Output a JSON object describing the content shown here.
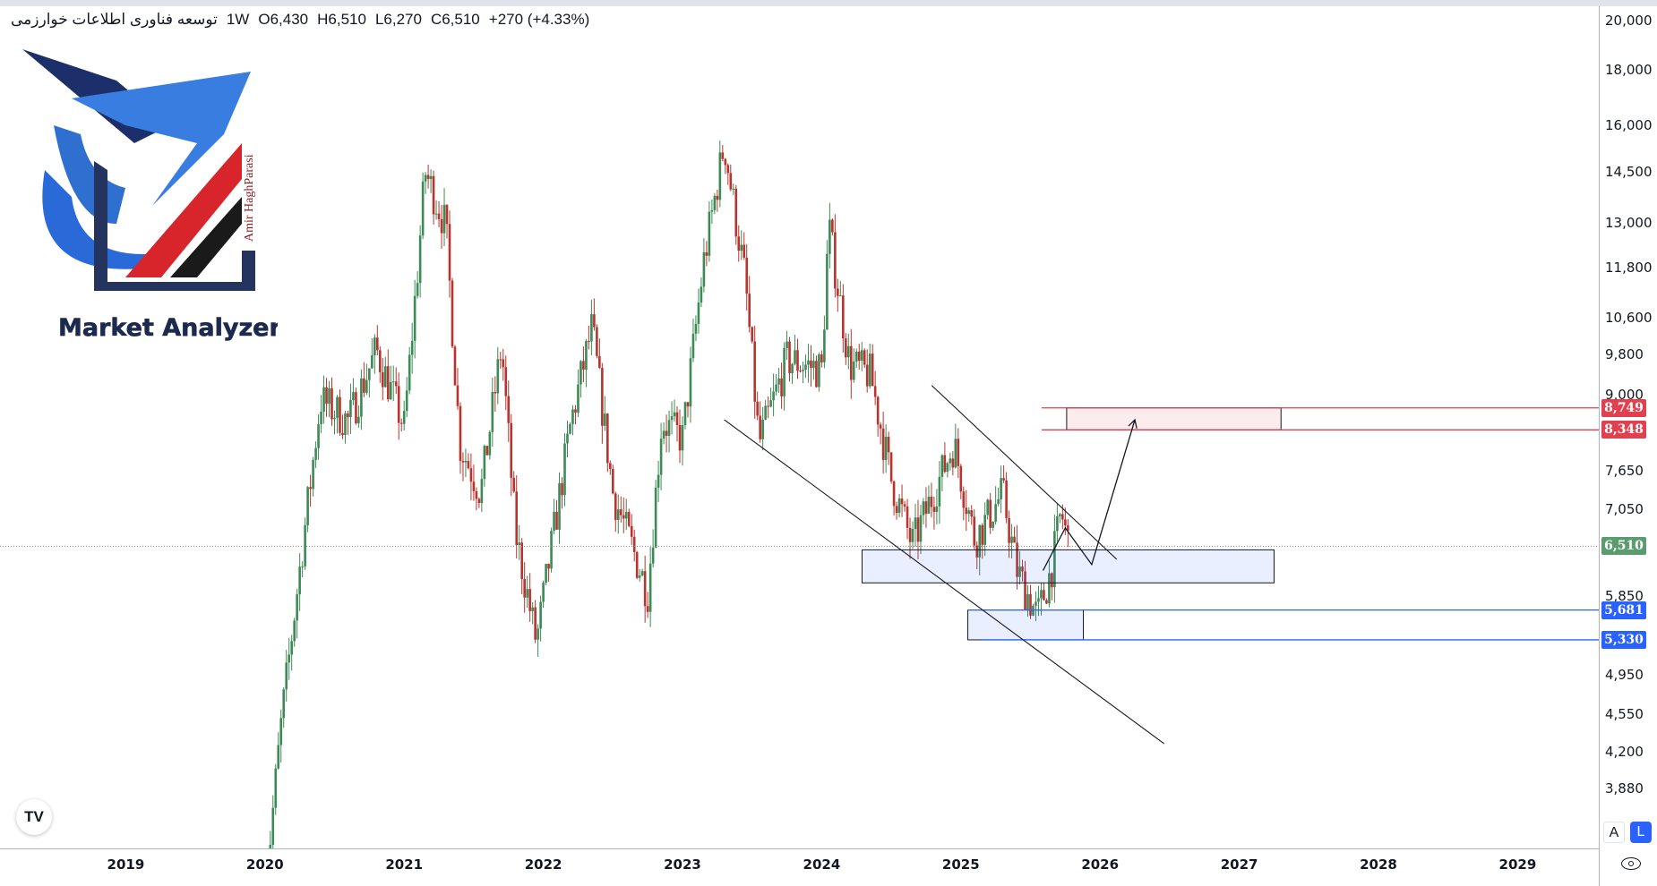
{
  "header": {
    "symbol": "توسعه فناوری اطلاعات خوارزمی",
    "interval": "1W",
    "open": "O6,430",
    "high": "H6,510",
    "low": "L6,270",
    "close": "C6,510",
    "change": "+270 (+4.33%)"
  },
  "logo": {
    "title": "Market Analyzer",
    "author": "Amir HaghParasi"
  },
  "tv_logo": "TV",
  "axis_buttons": {
    "auto": "A",
    "log": "L"
  },
  "chart_data": {
    "type": "candlestick",
    "scale": "log",
    "interval": "weekly",
    "ylim": [
      3500,
      21000
    ],
    "xlim": [
      2018.85,
      2029.6
    ],
    "price_ticks": [
      "20,000",
      "18,000",
      "16,000",
      "14,500",
      "13,000",
      "11,800",
      "10,600",
      "9,800",
      "9,000",
      "7,650",
      "7,050",
      "5,850",
      "4,950",
      "4,550",
      "4,200",
      "3,880"
    ],
    "time_ticks": [
      "2019",
      "2020",
      "2021",
      "2022",
      "2023",
      "2024",
      "2025",
      "2026",
      "2027",
      "2028",
      "2029"
    ],
    "approx_close_path": [
      [
        2020.0,
        3100
      ],
      [
        2020.12,
        4500
      ],
      [
        2020.25,
        6200
      ],
      [
        2020.4,
        8900
      ],
      [
        2020.6,
        8500
      ],
      [
        2020.8,
        9900
      ],
      [
        2021.0,
        8400
      ],
      [
        2021.1,
        11900
      ],
      [
        2021.15,
        14500
      ],
      [
        2021.3,
        12900
      ],
      [
        2021.4,
        8100
      ],
      [
        2021.55,
        7300
      ],
      [
        2021.7,
        10000
      ],
      [
        2021.8,
        6700
      ],
      [
        2021.95,
        5300
      ],
      [
        2022.2,
        8500
      ],
      [
        2022.35,
        10400
      ],
      [
        2022.5,
        7300
      ],
      [
        2022.75,
        5900
      ],
      [
        2022.85,
        8500
      ],
      [
        2023.0,
        8200
      ],
      [
        2023.15,
        11900
      ],
      [
        2023.3,
        15400
      ],
      [
        2023.45,
        11500
      ],
      [
        2023.55,
        8100
      ],
      [
        2023.75,
        9700
      ],
      [
        2024.0,
        9500
      ],
      [
        2024.05,
        12900
      ],
      [
        2024.2,
        9600
      ],
      [
        2024.35,
        9400
      ],
      [
        2024.5,
        7500
      ],
      [
        2024.65,
        6530
      ],
      [
        2024.95,
        8100
      ],
      [
        2025.1,
        6600
      ],
      [
        2025.3,
        7300
      ],
      [
        2025.4,
        6200
      ],
      [
        2025.55,
        5600
      ],
      [
        2025.65,
        6200
      ],
      [
        2025.72,
        7000
      ],
      [
        2025.78,
        6510
      ]
    ],
    "last_price": {
      "value": 6510,
      "label": "6,510",
      "color": "#5b9c6e"
    },
    "levels": [
      {
        "value": 8749,
        "label": "8,749",
        "color": "#e0404f",
        "from": 2025.58
      },
      {
        "value": 8348,
        "label": "8,348",
        "color": "#e0404f",
        "from": 2025.58
      },
      {
        "value": 5681,
        "label": "5,681",
        "color": "#2962ff",
        "from": 2025.05
      },
      {
        "value": 5330,
        "label": "5,330",
        "color": "#2962ff",
        "from": 2025.15
      }
    ],
    "zones": [
      {
        "x": [
          2025.76,
          2027.3
        ],
        "y": [
          8348,
          8749
        ],
        "color": "#e0404f"
      },
      {
        "x": [
          2024.29,
          2027.25
        ],
        "y": [
          6020,
          6460
        ],
        "color": "#2962ff"
      },
      {
        "x": [
          2025.05,
          2025.88
        ],
        "y": [
          5330,
          5681
        ],
        "color": "#2962ff"
      }
    ],
    "trendlines": [
      [
        [
          2023.3,
          8530
        ],
        [
          2026.46,
          4270
        ]
      ],
      [
        [
          2024.79,
          9180
        ],
        [
          2026.12,
          6330
        ]
      ]
    ],
    "projection": [
      [
        2025.59,
        6180
      ],
      [
        2025.75,
        6770
      ],
      [
        2025.94,
        6260
      ],
      [
        2026.25,
        8530
      ]
    ],
    "colors": {
      "up": "#3c8a55",
      "down": "#b8342e"
    }
  }
}
